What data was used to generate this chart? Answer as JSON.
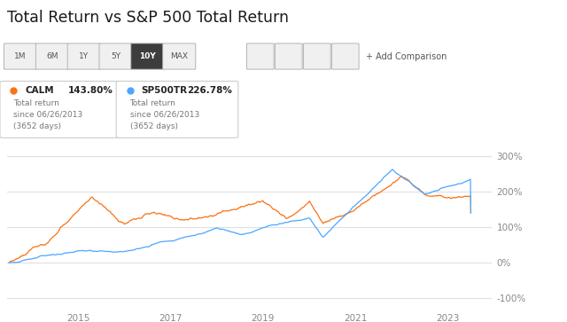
{
  "title": "Total Return vs S&P 500 Total Return",
  "calm_label": "CALM",
  "calm_return": "143.80%",
  "sp500_label": "SP500TR",
  "sp500_return": "226.78%",
  "subtitle1": "Total return",
  "subtitle2": "since 06/26/2013",
  "subtitle3": "(3652 days)",
  "calm_color": "#f97316",
  "sp500_color": "#4da6ff",
  "bg_color": "#ffffff",
  "grid_color": "#e0e0e0",
  "ytick_labels": [
    "-100%",
    "0%",
    "100%",
    "200%",
    "300%"
  ],
  "ytick_values": [
    -100,
    0,
    100,
    200,
    300
  ],
  "xtick_labels": [
    "2015",
    "2017",
    "2019",
    "2021",
    "2023"
  ],
  "xtick_positions": [
    2015,
    2017,
    2019,
    2021,
    2023
  ],
  "ylim": [
    -130,
    340
  ],
  "xlim": [
    2013.45,
    2023.95
  ],
  "time_buttons": [
    "1M",
    "6M",
    "1Y",
    "5Y",
    "10Y",
    "MAX"
  ],
  "active_button": "10Y"
}
